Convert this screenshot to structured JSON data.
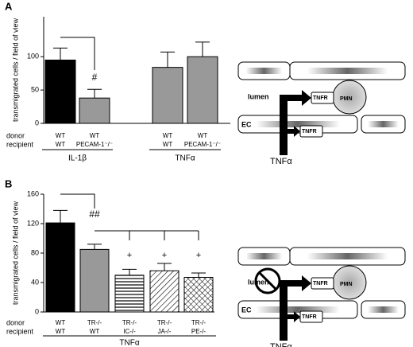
{
  "panel_labels": [
    "A",
    "B"
  ],
  "chart_data": [
    {
      "type": "bar",
      "ylabel": "transmigrated cells / field of view",
      "ylim": [
        0,
        160
      ],
      "yticks": [
        0,
        50,
        100
      ],
      "row_labels": [
        "donor",
        "recipient"
      ],
      "annotations": [
        "#"
      ],
      "groups": [
        {
          "label": "IL-1β",
          "donor": [
            "WT",
            "WT"
          ],
          "recipient": [
            "WT",
            "PECAM-1⁻/⁻"
          ],
          "values": [
            95,
            38
          ],
          "errors": [
            18,
            13
          ],
          "colors": [
            "#000000",
            "#999999"
          ],
          "patterns": [
            "solid",
            "solid"
          ]
        },
        {
          "label": "TNFα",
          "donor": [
            "WT",
            "WT"
          ],
          "recipient": [
            "WT",
            "PECAM-1⁻/⁻"
          ],
          "values": [
            84,
            100
          ],
          "errors": [
            23,
            22
          ],
          "colors": [
            "#999999",
            "#999999"
          ],
          "patterns": [
            "solid",
            "solid"
          ]
        }
      ]
    },
    {
      "type": "bar",
      "ylabel": "transmigrated cells / field of view",
      "ylim": [
        0,
        160
      ],
      "yticks": [
        0,
        40,
        80,
        120,
        160
      ],
      "row_labels": [
        "donor",
        "recipient"
      ],
      "annotations": [
        "##",
        "+",
        "+",
        "+"
      ],
      "groups": [
        {
          "label": "TNFα",
          "donor": [
            "WT",
            "TR-/-",
            "TR-/-",
            "TR-/-",
            "TR-/-"
          ],
          "recipient": [
            "WT",
            "WT",
            "IC-/-",
            "JA-/-",
            "PE-/-"
          ],
          "values": [
            121,
            85,
            50,
            56,
            47
          ],
          "errors": [
            17,
            7,
            8,
            10,
            6
          ],
          "colors": [
            "#000000",
            "#999999",
            "#ffffff",
            "#ffffff",
            "#ffffff"
          ],
          "patterns": [
            "solid",
            "solid",
            "hstripe",
            "diag",
            "cross"
          ]
        }
      ]
    }
  ],
  "diagrams": [
    {
      "labels": [
        "lumen",
        "TNFR",
        "PMN",
        "EC",
        "TNFR",
        "TNFα"
      ]
    },
    {
      "labels": [
        "lumen",
        "TNFR",
        "PMN",
        "EC",
        "TNFR",
        "TNFα"
      ]
    }
  ]
}
